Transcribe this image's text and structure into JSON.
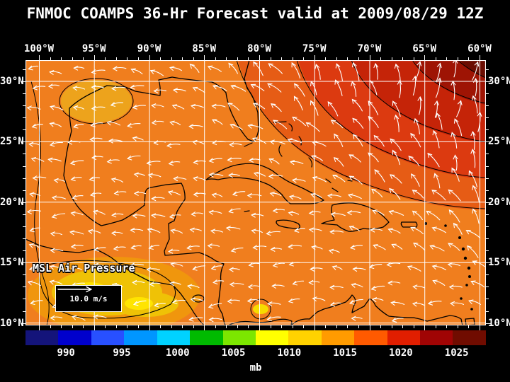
{
  "title": "FNMOC COAMPS 36-Hr Forecast valid at 2009/08/29 12Z",
  "map": {
    "x_axis_labels": [
      "100°W",
      "95°W",
      "90°W",
      "85°W",
      "80°W",
      "75°W",
      "70°W",
      "65°W",
      "60°W"
    ],
    "y_axis_labels": [
      "30°N",
      "25°N",
      "20°N",
      "15°N",
      "10°N"
    ],
    "overlay_label": "MSL Air Pressure",
    "wind_legend": {
      "speed_label": "10.0 m/s"
    }
  },
  "colorbar": {
    "unit": "mb",
    "tick_labels": [
      "990",
      "995",
      "1000",
      "1005",
      "1010",
      "1015",
      "1020",
      "1025"
    ],
    "colors": [
      "#14147a",
      "#0000cd",
      "#2850ff",
      "#0096ff",
      "#00d2ff",
      "#00ba00",
      "#7ce600",
      "#ffff00",
      "#ffd200",
      "#ff9b00",
      "#ff5a00",
      "#e11e00",
      "#a00404",
      "#700c00"
    ]
  },
  "chart_data": {
    "type": "heatmap",
    "title": "FNMOC COAMPS 36-Hr Forecast valid at 2009/08/29 12Z",
    "variable": "MSL Air Pressure",
    "unit": "mb",
    "x_ticks": [
      "100°W",
      "95°W",
      "90°W",
      "85°W",
      "80°W",
      "75°W",
      "70°W",
      "65°W",
      "60°W"
    ],
    "y_ticks": [
      "30°N",
      "25°N",
      "20°N",
      "15°N",
      "10°N"
    ],
    "colorbar_ticks": [
      990,
      995,
      1000,
      1005,
      1010,
      1015,
      1020,
      1025
    ],
    "wind_reference_mps": 10.0,
    "field_notes": "Orange field (~1012-1016 mb) over Gulf of Mexico and Caribbean; red to dark-red high (~1018-1026 mb) in northeast Atlantic corner; yellow lows (~1006-1010 mb) over Central America and western Gulf; white wind vectors show easterly trades curving northward around the Atlantic high."
  }
}
